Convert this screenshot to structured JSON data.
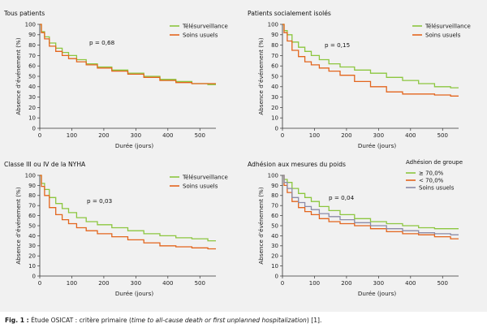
{
  "caption": {
    "label": "Fig. 1 :",
    "text_before": " Étude OSICAT : critère primaire (",
    "text_italic": "time to all-cause death or first unplanned hospitalization",
    "text_after": ") [1]."
  },
  "colors": {
    "green": "#8cc63f",
    "orange": "#e3651d",
    "gray": "#8b8ba7",
    "axis": "#333333",
    "background": "#f1f1f1"
  },
  "chart_data": [
    {
      "type": "line",
      "title": "Tous patients",
      "xlabel": "Durée (jours)",
      "ylabel": "Absence d’événement (%)",
      "xlim": [
        0,
        550
      ],
      "ylim": [
        0,
        100
      ],
      "xticks": [
        0,
        100,
        200,
        300,
        400,
        500
      ],
      "yticks": [
        0,
        10,
        20,
        30,
        40,
        50,
        60,
        70,
        80,
        90,
        100
      ],
      "annotation": "p = 0,68",
      "legend_title": "",
      "legend_position": "top-right",
      "series": [
        {
          "name": "Télésurveillance",
          "color": "#8cc63f",
          "x": [
            0,
            10,
            20,
            40,
            60,
            80,
            100,
            130,
            160,
            200,
            250,
            300,
            350,
            400,
            450,
            500,
            550
          ],
          "y": [
            100,
            93,
            88,
            82,
            77,
            73,
            70,
            66,
            62,
            59,
            56,
            53,
            50,
            47,
            45,
            43,
            42
          ]
        },
        {
          "name": "Soins usuels",
          "color": "#e3651d",
          "x": [
            0,
            10,
            20,
            40,
            60,
            80,
            100,
            130,
            160,
            200,
            250,
            300,
            350,
            400,
            450,
            500,
            550
          ],
          "y": [
            100,
            92,
            86,
            79,
            74,
            70,
            67,
            64,
            61,
            58,
            55,
            52,
            49,
            46,
            44,
            43,
            43
          ]
        }
      ]
    },
    {
      "type": "line",
      "title": "Patients socialement isolés",
      "xlabel": "Durée (jours)",
      "ylabel": "Absence d’événement (%)",
      "xlim": [
        0,
        550
      ],
      "ylim": [
        0,
        100
      ],
      "xticks": [
        0,
        100,
        200,
        300,
        400,
        500
      ],
      "yticks": [
        0,
        10,
        20,
        30,
        40,
        50,
        60,
        70,
        80,
        90,
        100
      ],
      "annotation": "p = 0,15",
      "legend_title": "",
      "legend_position": "top-right",
      "series": [
        {
          "name": "Télésurveillance",
          "color": "#8cc63f",
          "x": [
            0,
            10,
            20,
            40,
            60,
            80,
            100,
            130,
            160,
            200,
            250,
            300,
            350,
            400,
            450,
            500,
            550
          ],
          "y": [
            100,
            94,
            90,
            83,
            78,
            74,
            70,
            66,
            62,
            59,
            56,
            53,
            49,
            46,
            43,
            40,
            39
          ]
        },
        {
          "name": "Soins usuels",
          "color": "#e3651d",
          "x": [
            0,
            10,
            20,
            40,
            60,
            80,
            100,
            130,
            160,
            200,
            250,
            300,
            350,
            400,
            450,
            500,
            550
          ],
          "y": [
            100,
            92,
            84,
            75,
            69,
            64,
            61,
            58,
            55,
            51,
            45,
            40,
            35,
            33,
            33,
            32,
            31
          ]
        }
      ]
    },
    {
      "type": "line",
      "title": "Classe III ou IV de la NYHA",
      "xlabel": "Durée (jours)",
      "ylabel": "Absence d’événement (%)",
      "xlim": [
        0,
        550
      ],
      "ylim": [
        0,
        100
      ],
      "xticks": [
        0,
        100,
        200,
        300,
        400,
        500
      ],
      "yticks": [
        0,
        10,
        20,
        30,
        40,
        50,
        60,
        70,
        80,
        90,
        100
      ],
      "annotation": "p = 0,03",
      "legend_title": "",
      "legend_position": "top-right",
      "series": [
        {
          "name": "Télésurveillance",
          "color": "#8cc63f",
          "x": [
            0,
            10,
            20,
            40,
            60,
            80,
            100,
            130,
            160,
            200,
            250,
            300,
            350,
            400,
            450,
            500,
            550
          ],
          "y": [
            100,
            92,
            86,
            78,
            72,
            67,
            63,
            58,
            54,
            51,
            48,
            45,
            42,
            40,
            38,
            37,
            35
          ]
        },
        {
          "name": "Soins usuels",
          "color": "#e3651d",
          "x": [
            0,
            10,
            20,
            40,
            60,
            80,
            100,
            130,
            160,
            200,
            250,
            300,
            350,
            400,
            450,
            500,
            550
          ],
          "y": [
            100,
            89,
            80,
            68,
            61,
            56,
            52,
            48,
            45,
            42,
            39,
            36,
            33,
            30,
            29,
            28,
            27
          ]
        }
      ]
    },
    {
      "type": "line",
      "title": "Adhésion aux mesures du poids",
      "xlabel": "Durée (jours)",
      "ylabel": "Absence d’événement (%)",
      "xlim": [
        0,
        550
      ],
      "ylim": [
        0,
        100
      ],
      "xticks": [
        0,
        100,
        200,
        300,
        400,
        500
      ],
      "yticks": [
        0,
        10,
        20,
        30,
        40,
        50,
        60,
        70,
        80,
        90,
        100
      ],
      "annotation": "p = 0,04",
      "legend_title": "Adhésion de groupe",
      "legend_position": "top-right",
      "series": [
        {
          "name": "≥ 70,0%",
          "color": "#8cc63f",
          "x": [
            0,
            10,
            20,
            40,
            60,
            80,
            100,
            130,
            160,
            200,
            250,
            300,
            350,
            400,
            450,
            500,
            550
          ],
          "y": [
            100,
            96,
            93,
            87,
            82,
            78,
            74,
            69,
            65,
            61,
            57,
            54,
            52,
            50,
            48,
            47,
            47
          ]
        },
        {
          "name": "< 70,0%",
          "color": "#e3651d",
          "x": [
            0,
            10,
            20,
            40,
            60,
            80,
            100,
            130,
            160,
            200,
            250,
            300,
            350,
            400,
            450,
            500,
            550
          ],
          "y": [
            100,
            90,
            83,
            74,
            68,
            64,
            61,
            57,
            54,
            52,
            50,
            47,
            44,
            42,
            41,
            39,
            37
          ]
        },
        {
          "name": "Soins usuels",
          "color": "#8b8ba7",
          "x": [
            0,
            10,
            20,
            40,
            60,
            80,
            100,
            130,
            160,
            200,
            250,
            300,
            350,
            400,
            450,
            500,
            550
          ],
          "y": [
            100,
            93,
            87,
            78,
            73,
            69,
            66,
            62,
            59,
            56,
            53,
            50,
            47,
            45,
            43,
            42,
            41
          ]
        }
      ]
    }
  ]
}
